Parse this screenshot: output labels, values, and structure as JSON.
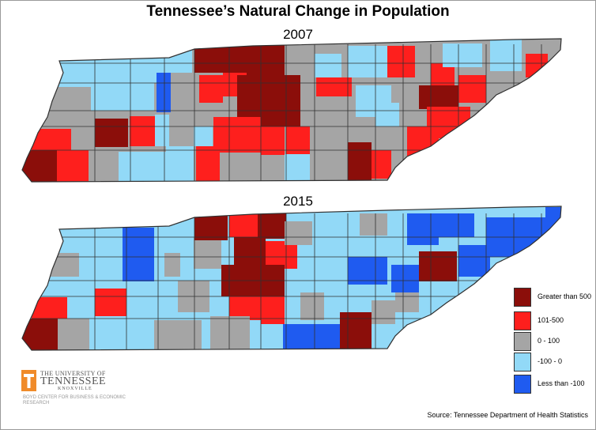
{
  "title": "Tennessee’s Natural Change in Population",
  "maps": [
    {
      "year": "2007"
    },
    {
      "year": "2015"
    }
  ],
  "colors": {
    "greater_than_500": "#8b0e0a",
    "range_101_500": "#fe1f1d",
    "range_0_100": "#a5a5a5",
    "range_neg100_0": "#92d9f7",
    "less_than_neg100": "#1f5bf0",
    "border": "#303030"
  },
  "legend": [
    {
      "label": "Greater than 500",
      "color_key": "greater_than_500"
    },
    {
      "label": "101-500",
      "color_key": "range_101_500"
    },
    {
      "label": "0 - 100",
      "color_key": "range_0_100"
    },
    {
      "label": "-100 - 0",
      "color_key": "range_neg100_0"
    },
    {
      "label": "Less than -100",
      "color_key": "less_than_neg100"
    }
  ],
  "logo": {
    "line1": "THE UNIVERSITY OF",
    "line2": "TENNESSEE",
    "line3": "KNOXVILLE",
    "line4": "BOYD CENTER FOR BUSINESS & ECONOMIC RESEARCH",
    "mark": "T"
  },
  "source": "Source: Tennessee Department of Health Statistics"
}
